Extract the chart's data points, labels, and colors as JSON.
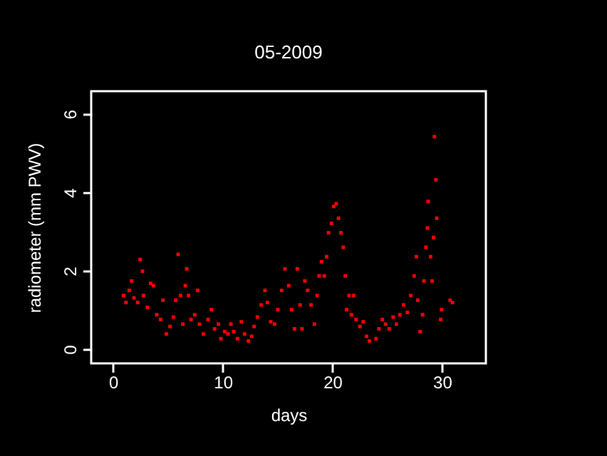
{
  "chart_data": {
    "type": "scatter",
    "title": "05-2009",
    "xlabel": "days",
    "ylabel": "radiometer (mm PWV)",
    "xlim": [
      -2,
      34
    ],
    "ylim": [
      -0.36,
      6.58
    ],
    "xticks": [
      0,
      10,
      20,
      30
    ],
    "yticks": [
      0,
      2,
      4,
      6
    ],
    "grid": false,
    "marker": "square",
    "series": [
      {
        "color": "#ff0000",
        "x": [
          0.95,
          1.17,
          1.47,
          1.69,
          1.9,
          2.25,
          2.47,
          2.68,
          2.77,
          3.12,
          3.42,
          3.68,
          3.98,
          4.33,
          4.55,
          4.85,
          5.19,
          5.5,
          5.71,
          5.93,
          6.15,
          6.36,
          6.58,
          6.71,
          6.88,
          7.1,
          7.45,
          7.71,
          7.88,
          8.23,
          8.66,
          8.96,
          9.26,
          9.61,
          9.83,
          10.17,
          10.48,
          10.74,
          11.0,
          11.34,
          11.69,
          11.99,
          12.34,
          12.64,
          12.86,
          13.16,
          13.51,
          13.85,
          14.07,
          14.37,
          14.72,
          15.02,
          15.37,
          15.67,
          16.02,
          16.28,
          16.54,
          16.8,
          17.06,
          17.23,
          17.49,
          17.75,
          18.05,
          18.36,
          18.61,
          18.79,
          19.0,
          19.26,
          19.48,
          19.65,
          19.91,
          20.13,
          20.35,
          20.56,
          20.78,
          20.99,
          21.17,
          21.3,
          21.52,
          21.73,
          21.95,
          22.16,
          22.51,
          22.81,
          23.12,
          23.38,
          23.98,
          24.24,
          24.55,
          24.85,
          25.19,
          25.54,
          25.84,
          26.15,
          26.49,
          26.84,
          27.14,
          27.45,
          27.66,
          27.79,
          28.01,
          28.23,
          28.35,
          28.53,
          28.66,
          28.74,
          28.96,
          29.09,
          29.22,
          29.31,
          29.44,
          29.52,
          29.87,
          29.96,
          30.74,
          30.95
        ],
        "values": [
          1.37,
          1.19,
          1.5,
          1.74,
          1.31,
          1.19,
          2.29,
          1.99,
          1.37,
          1.07,
          1.68,
          1.62,
          0.88,
          0.76,
          1.25,
          0.39,
          0.58,
          0.82,
          1.25,
          2.42,
          1.37,
          0.64,
          1.62,
          2.05,
          1.37,
          0.76,
          0.88,
          1.5,
          0.64,
          0.39,
          0.76,
          1.01,
          0.52,
          0.64,
          0.27,
          0.45,
          0.39,
          0.64,
          0.45,
          0.27,
          0.7,
          0.39,
          0.21,
          0.33,
          0.58,
          0.82,
          1.13,
          1.5,
          1.19,
          0.7,
          0.64,
          1.01,
          1.5,
          2.05,
          1.62,
          1.01,
          0.52,
          2.05,
          1.13,
          0.52,
          1.74,
          1.5,
          1.13,
          0.64,
          1.37,
          1.87,
          2.23,
          1.87,
          2.36,
          2.97,
          3.21,
          3.64,
          3.71,
          3.34,
          2.97,
          2.6,
          1.87,
          1.01,
          1.37,
          0.88,
          1.37,
          0.76,
          0.58,
          0.7,
          0.33,
          0.21,
          0.27,
          0.52,
          0.76,
          0.64,
          0.52,
          0.82,
          0.64,
          0.88,
          1.13,
          0.94,
          1.37,
          1.87,
          2.36,
          1.25,
          0.45,
          0.88,
          1.74,
          2.6,
          3.09,
          3.77,
          2.36,
          1.74,
          2.85,
          5.42,
          4.32,
          3.34,
          0.76,
          1.01,
          1.25,
          1.19
        ]
      }
    ]
  }
}
